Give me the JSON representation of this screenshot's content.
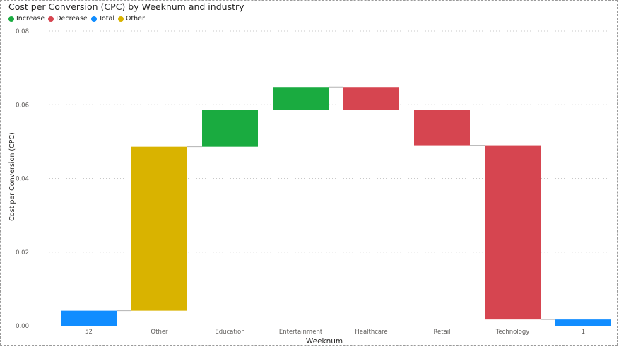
{
  "chart_data": {
    "type": "waterfall",
    "title": "Cost per Conversion (CPC) by Weeknum and industry",
    "xlabel": "Weeknum",
    "ylabel": "Cost per Conversion (CPC)",
    "ylim": [
      0,
      0.08
    ],
    "yticks": [
      "0.00",
      "0.02",
      "0.04",
      "0.06",
      "0.08"
    ],
    "grid": true,
    "legend_position": "top-left",
    "legend": [
      {
        "name": "Increase",
        "color": "#1aab40"
      },
      {
        "name": "Decrease",
        "color": "#d64550"
      },
      {
        "name": "Total",
        "color": "#118dff"
      },
      {
        "name": "Other",
        "color": "#d9b300"
      }
    ],
    "bars": [
      {
        "category": "52",
        "kind": "Total",
        "start": 0,
        "end": 0.0041
      },
      {
        "category": "Other",
        "kind": "Other",
        "start": 0.0041,
        "end": 0.0486
      },
      {
        "category": "Education",
        "kind": "Increase",
        "start": 0.0486,
        "end": 0.0586
      },
      {
        "category": "Entertainment",
        "kind": "Increase",
        "start": 0.0586,
        "end": 0.0648
      },
      {
        "category": "Healthcare",
        "kind": "Decrease",
        "start": 0.0648,
        "end": 0.0586
      },
      {
        "category": "Retail",
        "kind": "Decrease",
        "start": 0.0586,
        "end": 0.049
      },
      {
        "category": "Technology",
        "kind": "Decrease",
        "start": 0.049,
        "end": 0.0017
      },
      {
        "category": "1",
        "kind": "Total",
        "start": 0,
        "end": 0.0017
      }
    ]
  }
}
